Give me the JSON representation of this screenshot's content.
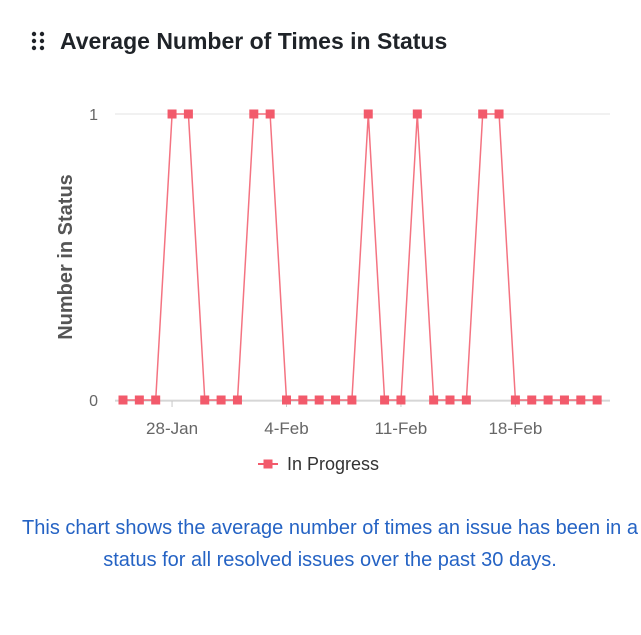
{
  "panel": {
    "title": "Average Number of Times in Status",
    "drag_icon": "drag-handle-icon",
    "caption": "This chart shows the average number of times an issue has been in a status for all resolved issues over the past 30 days."
  },
  "chart_data": {
    "type": "line",
    "title": "",
    "xlabel": "",
    "ylabel": "Number in Status",
    "ylim": [
      0,
      1
    ],
    "y_ticks": [
      "0",
      "1"
    ],
    "x_ticks": [
      {
        "label": "28-Jan",
        "index": 3
      },
      {
        "label": "4-Feb",
        "index": 10
      },
      {
        "label": "11-Feb",
        "index": 17
      },
      {
        "label": "18-Feb",
        "index": 24
      }
    ],
    "x": [
      "25-Jan",
      "26-Jan",
      "27-Jan",
      "28-Jan",
      "29-Jan",
      "30-Jan",
      "31-Jan",
      "1-Feb",
      "2-Feb",
      "3-Feb",
      "4-Feb",
      "5-Feb",
      "6-Feb",
      "7-Feb",
      "8-Feb",
      "9-Feb",
      "10-Feb",
      "11-Feb",
      "12-Feb",
      "13-Feb",
      "14-Feb",
      "15-Feb",
      "16-Feb",
      "17-Feb",
      "18-Feb",
      "19-Feb",
      "20-Feb",
      "21-Feb",
      "22-Feb",
      "23-Feb"
    ],
    "series": [
      {
        "name": "In Progress",
        "color": "#f25a6b",
        "values": [
          0,
          0,
          0,
          1,
          1,
          0,
          0,
          0,
          1,
          1,
          0,
          0,
          0,
          0,
          0,
          1,
          0,
          0,
          1,
          0,
          0,
          0,
          1,
          1,
          0,
          0,
          0,
          0,
          0,
          0
        ]
      }
    ],
    "legend_position": "bottom-center",
    "grid": true
  }
}
